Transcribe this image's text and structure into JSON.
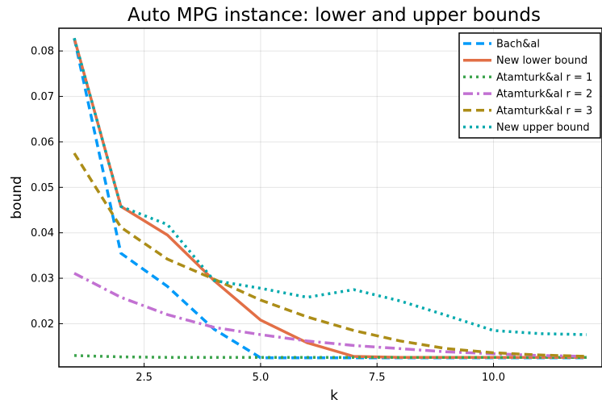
{
  "chart_data": {
    "type": "line",
    "title": "Auto MPG instance: lower and upper bounds",
    "xlabel": "k",
    "ylabel": "bound",
    "xlim": [
      0.67,
      12.33
    ],
    "ylim": [
      0.0105,
      0.085
    ],
    "xticks": [
      2.5,
      5.0,
      7.5,
      10.0
    ],
    "xtick_labels": [
      "2.5",
      "5.0",
      "7.5",
      "10.0"
    ],
    "yticks": [
      0.02,
      0.03,
      0.04,
      0.05,
      0.06,
      0.07,
      0.08
    ],
    "ytick_labels": [
      "0.02",
      "0.03",
      "0.04",
      "0.05",
      "0.06",
      "0.07",
      "0.08"
    ],
    "grid": true,
    "legend_position": "top-right",
    "x": [
      1,
      2,
      3,
      4,
      5,
      6,
      7,
      8,
      9,
      10,
      11,
      12
    ],
    "series": [
      {
        "name": "Bach&al",
        "color": "#009af9",
        "style": "dash",
        "values": [
          0.0828,
          0.0355,
          0.0282,
          0.0188,
          0.0125,
          0.0125,
          0.0125,
          0.0125,
          0.0125,
          0.0125,
          0.0125,
          0.0125
        ]
      },
      {
        "name": "New lower bound",
        "color": "#e26f46",
        "style": "solid",
        "values": [
          0.0828,
          0.0458,
          0.0395,
          0.0295,
          0.0208,
          0.0158,
          0.0128,
          0.0126,
          0.0126,
          0.0126,
          0.0126,
          0.0126
        ]
      },
      {
        "name": "Atamturk&al r = 1",
        "color": "#3da44d",
        "style": "dot",
        "values": [
          0.013,
          0.0127,
          0.0126,
          0.0126,
          0.0126,
          0.0126,
          0.0126,
          0.0126,
          0.0126,
          0.0126,
          0.0126,
          0.0126
        ]
      },
      {
        "name": "Atamturk&al r = 2",
        "color": "#c271d2",
        "style": "dashdot",
        "values": [
          0.0311,
          0.0258,
          0.022,
          0.0192,
          0.0176,
          0.0162,
          0.0152,
          0.0145,
          0.0138,
          0.0134,
          0.013,
          0.0128
        ]
      },
      {
        "name": "Atamturk&al r = 3",
        "color": "#ac8d18",
        "style": "dash",
        "values": [
          0.0575,
          0.0412,
          0.0342,
          0.0298,
          0.0252,
          0.0215,
          0.0185,
          0.0162,
          0.0145,
          0.0136,
          0.0131,
          0.0128
        ]
      },
      {
        "name": "New upper bound",
        "color": "#00a9ad",
        "style": "dot",
        "values": [
          0.0828,
          0.0458,
          0.0418,
          0.0295,
          0.0278,
          0.0258,
          0.0275,
          0.025,
          0.0218,
          0.0185,
          0.0178,
          0.0176
        ]
      }
    ]
  }
}
